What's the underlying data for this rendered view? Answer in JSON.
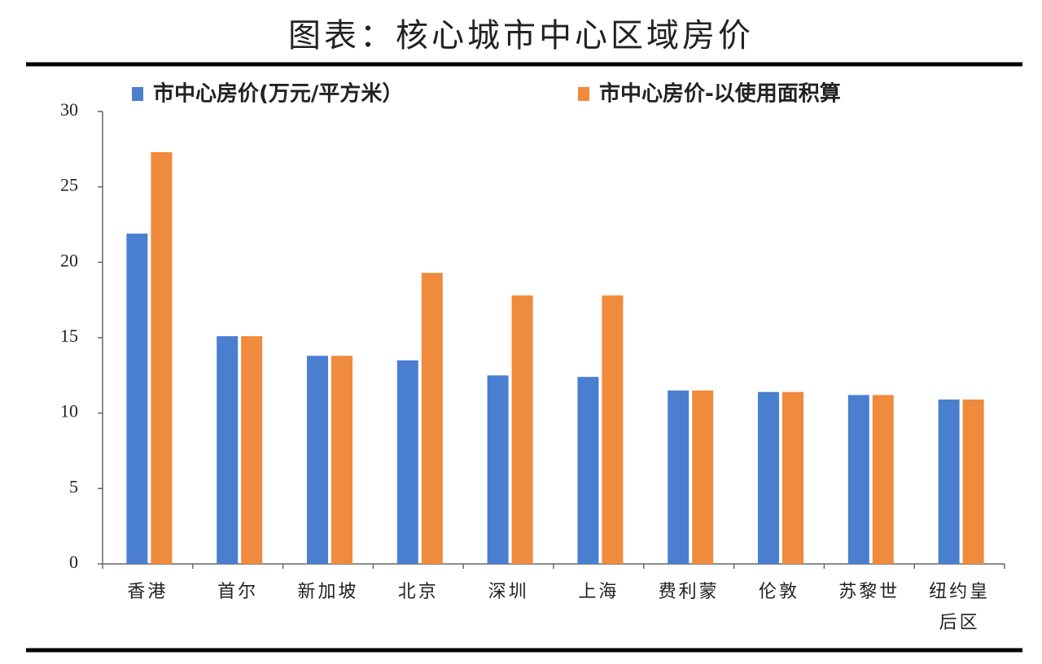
{
  "chart_data": {
    "type": "bar",
    "title": "图表：核心城市中心区域房价",
    "categories": [
      "香港",
      "首尔",
      "新加坡",
      "北京",
      "深圳",
      "上海",
      "费利蒙",
      "伦敦",
      "苏黎世",
      "纽约皇后区"
    ],
    "series": [
      {
        "name": "市中心房价(万元/平方米）",
        "color": "#4a7fd0",
        "values": [
          21.9,
          15.1,
          13.8,
          13.5,
          12.5,
          12.4,
          11.5,
          11.4,
          11.2,
          10.9
        ]
      },
      {
        "name": "市中心房价-以使用面积算",
        "color": "#f08a3c",
        "values": [
          27.3,
          15.1,
          13.8,
          19.3,
          17.8,
          17.8,
          11.5,
          11.4,
          11.2,
          10.9
        ]
      }
    ],
    "ylim": [
      0,
      30
    ],
    "yticks": [
      0,
      5,
      10,
      15,
      20,
      25,
      30
    ],
    "grid": false
  }
}
